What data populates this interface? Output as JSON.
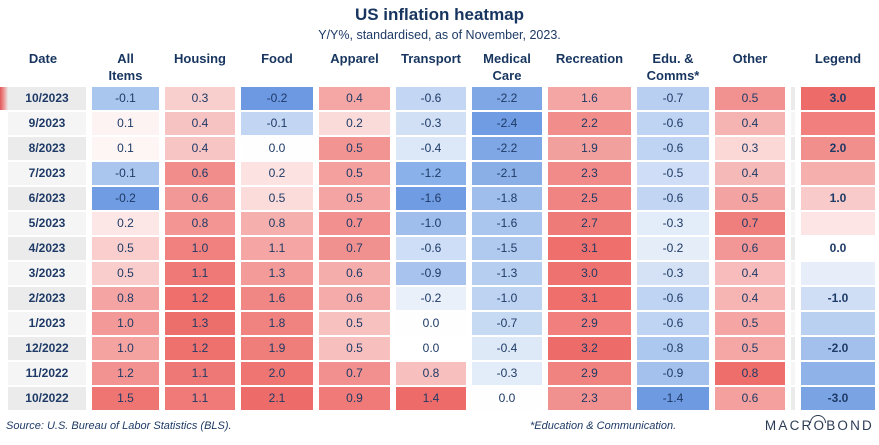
{
  "title": "US inflation heatmap",
  "subtitle": "Y/Y%, standardised, as of November, 2023.",
  "header_lines": [
    "Date",
    "All\nItems",
    "Housing",
    "Food",
    "Apparel",
    "Transport",
    "Medical\nCare",
    "Recreation",
    "Edu. &\nComms*",
    "Other",
    "Legend"
  ],
  "footer": {
    "source": "Source: U.S. Bureau of Labor Statistics (BLS).",
    "footnote": "*Education & Communication.",
    "logo": "MACROBOND"
  },
  "colors": {
    "text_navy": "#1e3a66",
    "header_navy": "#17355f",
    "date_odd_bg": "#ebebeb",
    "date_even_bg": "#f5f5f5",
    "current_marker_red": "#e15659",
    "scale_max_red": "#ed6b68",
    "scale_mid_white": "#ffffff",
    "scale_min_blue": "#7aa3e4"
  },
  "chart_data": {
    "type": "heatmap",
    "title": "US inflation heatmap",
    "subtitle": "Y/Y%, standardised, as of November, 2023.",
    "legend_scale": {
      "min": -3.0,
      "max": 3.0,
      "labeled_ticks": [
        3.0,
        2.0,
        1.0,
        0.0,
        -1.0,
        -2.0,
        -3.0
      ]
    },
    "columns": [
      "All Items",
      "Housing",
      "Food",
      "Apparel",
      "Transport",
      "Medical Care",
      "Recreation",
      "Edu. & Comms*",
      "Other"
    ],
    "rows": [
      {
        "date": "10/2023",
        "current": true,
        "values": [
          "-0.1",
          "0.3",
          "-0.2",
          "0.4",
          "-0.6",
          "-2.2",
          "1.6",
          "-0.7",
          "0.5"
        ],
        "colors": [
          "#a9c6ee",
          "#f9cfce",
          "#6d99e3",
          "#f4a7a5",
          "#c3d6f3",
          "#80a7e5",
          "#f4a6a4",
          "#b9cff1",
          "#f19290"
        ],
        "legend_label": "3.0",
        "legend_color": "#ed6b68"
      },
      {
        "date": "9/2023",
        "current": false,
        "values": [
          "0.1",
          "0.4",
          "-0.1",
          "0.2",
          "-0.3",
          "-2.4",
          "2.2",
          "-0.6",
          "0.4"
        ],
        "colors": [
          "#fdf3f3",
          "#f7c3c2",
          "#c2d5f3",
          "#fbdbda",
          "#d2e0f5",
          "#6f9ce2",
          "#f18d8b",
          "#bed4f2",
          "#f5b3b1"
        ],
        "legend_label": "",
        "legend_color": "#f07f7d"
      },
      {
        "date": "8/2023",
        "current": false,
        "values": [
          "0.1",
          "0.4",
          "0.0",
          "0.5",
          "-0.4",
          "-2.2",
          "1.9",
          "-0.6",
          "0.3"
        ],
        "colors": [
          "#fef5f5",
          "#f7c5c4",
          "#fefefe",
          "#f29492",
          "#dce7f8",
          "#80a7e5",
          "#f2a09e",
          "#bed4f2",
          "#fbd7d6"
        ],
        "legend_label": "2.0",
        "legend_color": "#f18f8d"
      },
      {
        "date": "7/2023",
        "current": false,
        "values": [
          "-0.1",
          "0.6",
          "0.2",
          "0.5",
          "-1.2",
          "-2.1",
          "2.3",
          "-0.5",
          "0.4"
        ],
        "colors": [
          "#aac6ee",
          "#f18e8c",
          "#fce3e2",
          "#f3a09e",
          "#8ab1e9",
          "#8aafe7",
          "#f18b89",
          "#cfdef6",
          "#f5b9b7"
        ],
        "legend_label": "",
        "legend_color": "#f5b0ae"
      },
      {
        "date": "6/2023",
        "current": false,
        "values": [
          "-0.2",
          "0.6",
          "0.5",
          "0.5",
          "-1.6",
          "-1.8",
          "2.5",
          "-0.6",
          "0.5"
        ],
        "colors": [
          "#6f9ce3",
          "#f29896",
          "#fbdcdb",
          "#f4a5a3",
          "#6f9ce3",
          "#9fbeeb",
          "#f08482",
          "#c2d6f3",
          "#f3a3a1"
        ],
        "legend_label": "1.0",
        "legend_color": "#f8cbca"
      },
      {
        "date": "5/2023",
        "current": false,
        "values": [
          "0.2",
          "0.8",
          "0.8",
          "0.7",
          "-1.0",
          "-1.6",
          "2.7",
          "-0.3",
          "0.7"
        ],
        "colors": [
          "#fce7e6",
          "#f29593",
          "#f5b0ae",
          "#f1908e",
          "#9fbeec",
          "#aac6ee",
          "#ef7b79",
          "#e3ecf9",
          "#ee7f7c"
        ],
        "legend_label": "",
        "legend_color": "#fce5e4"
      },
      {
        "date": "4/2023",
        "current": false,
        "values": [
          "0.5",
          "1.0",
          "1.1",
          "0.7",
          "-0.6",
          "-1.5",
          "3.1",
          "-0.2",
          "0.6"
        ],
        "colors": [
          "#f9cecd",
          "#f0817e",
          "#f5a5a3",
          "#f1918f",
          "#cddef6",
          "#b0caef",
          "#ee6f6c",
          "#e5edf9",
          "#f29795"
        ],
        "legend_label": "0.0",
        "legend_color": "#ffffff"
      },
      {
        "date": "3/2023",
        "current": false,
        "values": [
          "0.5",
          "1.1",
          "1.3",
          "0.6",
          "-0.9",
          "-1.3",
          "3.0",
          "-0.3",
          "0.4"
        ],
        "colors": [
          "#f9cdcc",
          "#ef7976",
          "#f39b99",
          "#f5adab",
          "#a8c4ee",
          "#b6cef0",
          "#ee7370",
          "#d5e2f6",
          "#f7bcbb"
        ],
        "legend_label": "",
        "legend_color": "#e7eef9"
      },
      {
        "date": "2/2023",
        "current": false,
        "values": [
          "0.8",
          "1.2",
          "1.6",
          "0.6",
          "-0.2",
          "-1.0",
          "3.1",
          "-0.6",
          "0.4"
        ],
        "colors": [
          "#f4a5a3",
          "#ee6f6c",
          "#f18784",
          "#f5abaa",
          "#e9f0fa",
          "#bdd3f1",
          "#ee6f6c",
          "#bed4f2",
          "#f6b5b3"
        ],
        "legend_label": "-1.0",
        "legend_color": "#cfdef5"
      },
      {
        "date": "1/2023",
        "current": false,
        "values": [
          "1.0",
          "1.3",
          "1.8",
          "0.5",
          "0.0",
          "-0.7",
          "2.9",
          "-0.6",
          "0.5"
        ],
        "colors": [
          "#f39a98",
          "#ed6f6c",
          "#f08280",
          "#f7c1c0",
          "#fefefe",
          "#c7daf4",
          "#f07f7d",
          "#bed4f2",
          "#f5a5a3"
        ],
        "legend_label": "",
        "legend_color": "#bad0f0"
      },
      {
        "date": "12/2022",
        "current": false,
        "values": [
          "1.0",
          "1.2",
          "1.9",
          "0.5",
          "0.0",
          "-0.4",
          "3.2",
          "-0.8",
          "0.5"
        ],
        "colors": [
          "#f4a3a1",
          "#ee716e",
          "#ef7d7a",
          "#f7bfbe",
          "#ffffff",
          "#dee9f8",
          "#ed6b68",
          "#adc8ee",
          "#f5a7a5"
        ],
        "legend_label": "-2.0",
        "legend_color": "#a3c0ec"
      },
      {
        "date": "11/2022",
        "current": false,
        "values": [
          "1.2",
          "1.1",
          "2.0",
          "0.7",
          "0.8",
          "-0.3",
          "2.9",
          "-0.9",
          "0.8"
        ],
        "colors": [
          "#f29391",
          "#ee7875",
          "#ee7572",
          "#f1908e",
          "#f7bfbe",
          "#e3ecf9",
          "#f08280",
          "#a4c1ed",
          "#ed6e6b"
        ],
        "legend_label": "",
        "legend_color": "#8fb3e8"
      },
      {
        "date": "10/2022",
        "current": false,
        "values": [
          "1.5",
          "1.1",
          "2.1",
          "0.9",
          "1.4",
          "0.0",
          "2.3",
          "-1.4",
          "0.6"
        ],
        "colors": [
          "#ee7572",
          "#ef7a77",
          "#ed6c69",
          "#ef7a77",
          "#ed6c69",
          "#fefefe",
          "#f1918f",
          "#6d9ae1",
          "#f3a09e"
        ],
        "legend_label": "-3.0",
        "legend_color": "#7aa3e4"
      }
    ]
  }
}
